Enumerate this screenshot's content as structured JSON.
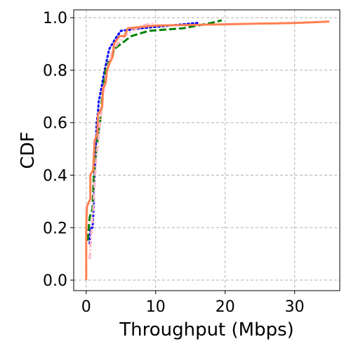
{
  "chart_data": {
    "type": "line",
    "title": "",
    "xlabel": "Throughput (Mbps)",
    "ylabel": "CDF",
    "xlim": [
      -1.8,
      36.5
    ],
    "ylim": [
      -0.04,
      1.03
    ],
    "xticks": [
      0,
      10,
      20,
      30
    ],
    "xtick_labels": [
      "0",
      "10",
      "20",
      "30"
    ],
    "yticks": [
      0.0,
      0.2,
      0.4,
      0.6,
      0.8,
      1.0
    ],
    "ytick_labels": [
      "0.0",
      "0.2",
      "0.4",
      "0.6",
      "0.8",
      "1.0"
    ],
    "grid": true,
    "legend": "none",
    "series": [
      {
        "name": "series-blue-dotted",
        "color": "#0000ff",
        "style": "dotted",
        "points": [
          [
            0.5,
            0.14
          ],
          [
            0.6,
            0.2
          ],
          [
            0.9,
            0.2
          ],
          [
            1.0,
            0.24
          ],
          [
            1.1,
            0.29
          ],
          [
            1.1,
            0.35
          ],
          [
            1.2,
            0.4
          ],
          [
            1.3,
            0.47
          ],
          [
            1.4,
            0.52
          ],
          [
            1.5,
            0.6
          ],
          [
            1.7,
            0.64
          ],
          [
            1.8,
            0.68
          ],
          [
            2.1,
            0.72
          ],
          [
            2.5,
            0.78
          ],
          [
            2.9,
            0.83
          ],
          [
            3.3,
            0.88
          ],
          [
            4.2,
            0.92
          ],
          [
            5.0,
            0.95
          ],
          [
            8.0,
            0.96
          ],
          [
            12.0,
            0.97
          ],
          [
            16.0,
            0.98
          ]
        ]
      },
      {
        "name": "series-green-dashed",
        "color": "#008000",
        "style": "dashed",
        "points": [
          [
            0.2,
            0.15
          ],
          [
            0.5,
            0.24
          ],
          [
            0.9,
            0.27
          ],
          [
            1.1,
            0.4
          ],
          [
            1.3,
            0.45
          ],
          [
            1.5,
            0.5
          ],
          [
            1.7,
            0.55
          ],
          [
            2.0,
            0.6
          ],
          [
            2.3,
            0.7
          ],
          [
            2.8,
            0.8
          ],
          [
            3.2,
            0.83
          ],
          [
            3.7,
            0.84
          ],
          [
            4.0,
            0.88
          ],
          [
            5.0,
            0.9
          ],
          [
            6.5,
            0.93
          ],
          [
            9.0,
            0.95
          ],
          [
            14.0,
            0.96
          ],
          [
            18.0,
            0.98
          ],
          [
            19.5,
            0.99
          ]
        ]
      },
      {
        "name": "series-pink-dashdot",
        "color": "#ffb6c1",
        "style": "dashdot",
        "points": [
          [
            0.5,
            0.08
          ],
          [
            0.7,
            0.17
          ],
          [
            1.0,
            0.26
          ],
          [
            1.2,
            0.37
          ],
          [
            1.4,
            0.45
          ],
          [
            1.6,
            0.5
          ],
          [
            1.8,
            0.55
          ],
          [
            2.1,
            0.62
          ],
          [
            2.5,
            0.72
          ],
          [
            3.0,
            0.8
          ],
          [
            3.6,
            0.86
          ],
          [
            4.5,
            0.9
          ],
          [
            6.0,
            0.94
          ],
          [
            8.0,
            0.97
          ],
          [
            10.0,
            0.98
          ]
        ]
      },
      {
        "name": "series-orange-solid",
        "color": "#ff7f50",
        "style": "solid",
        "points": [
          [
            0.0,
            0.0
          ],
          [
            0.0,
            0.2
          ],
          [
            0.1,
            0.28
          ],
          [
            0.6,
            0.31
          ],
          [
            0.6,
            0.4
          ],
          [
            1.0,
            0.42
          ],
          [
            1.2,
            0.53
          ],
          [
            1.6,
            0.56
          ],
          [
            1.7,
            0.63
          ],
          [
            2.3,
            0.66
          ],
          [
            2.4,
            0.73
          ],
          [
            2.8,
            0.75
          ],
          [
            3.0,
            0.8
          ],
          [
            3.4,
            0.83
          ],
          [
            3.8,
            0.85
          ],
          [
            4.0,
            0.9
          ],
          [
            4.8,
            0.93
          ],
          [
            5.5,
            0.93
          ],
          [
            6.0,
            0.96
          ],
          [
            10.0,
            0.97
          ],
          [
            20.0,
            0.975
          ],
          [
            30.0,
            0.98
          ],
          [
            35.0,
            0.985
          ]
        ]
      }
    ]
  }
}
